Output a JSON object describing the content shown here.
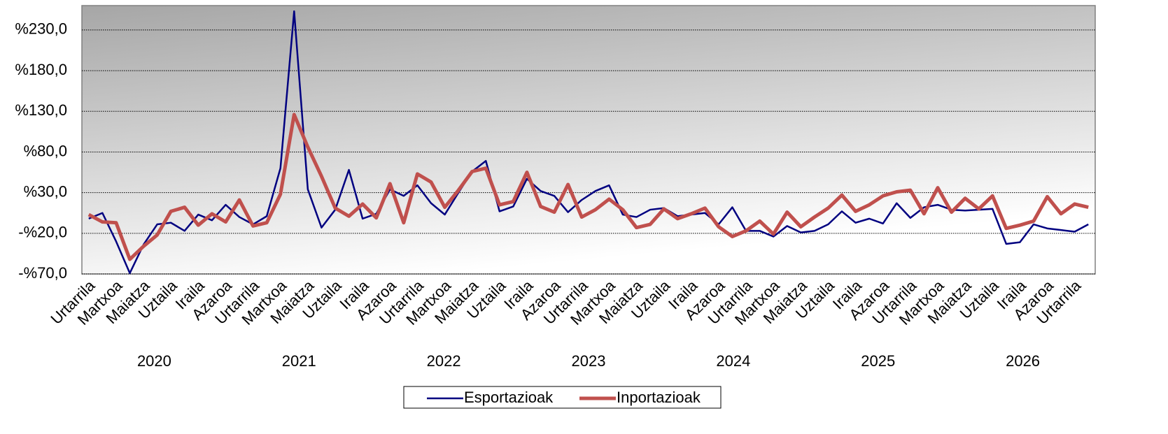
{
  "chart_data": {
    "type": "line",
    "categories": [
      "Urtarrila",
      null,
      "Martxoa",
      null,
      "Maiatza",
      null,
      "Uztaila",
      null,
      "Iraila",
      null,
      "Azaroa",
      null,
      "Urtarrila",
      null,
      "Martxoa",
      null,
      "Maiatza",
      null,
      "Uztaila",
      null,
      "Iraila",
      null,
      "Azaroa",
      null,
      "Urtarrila",
      null,
      "Martxoa",
      null,
      "Maiatza",
      null,
      "Uztaila",
      null,
      "Iraila",
      null,
      "Azaroa",
      null,
      "Urtarrila",
      null,
      "Martxoa",
      null,
      "Maiatza",
      null,
      "Uztaila",
      null,
      "Iraila",
      null,
      "Azaroa",
      null,
      "Urtarrila",
      null,
      "Martxoa",
      null,
      "Maiatza",
      null,
      "Uztaila",
      null,
      "Iraila",
      null,
      "Azaroa",
      null,
      "Urtarrila",
      null,
      "Martxoa",
      null,
      "Maiatza",
      null,
      "Uztaila",
      null,
      "Iraila",
      null,
      "Azaroa",
      null,
      "Urtarrila",
      null
    ],
    "groups": [
      "2020",
      "2021",
      "2022",
      "2023",
      "2024",
      "2025",
      "2026"
    ],
    "series": [
      {
        "name": "Esportazioak",
        "color": "#000080",
        "width": 2.5,
        "values": [
          -2,
          5,
          -30,
          -69,
          -34,
          -9,
          -7,
          -17,
          3,
          -4,
          15,
          0,
          -9,
          1,
          60,
          253,
          34,
          -13,
          9,
          58,
          -2,
          4,
          34,
          26,
          39,
          17,
          3,
          30,
          56,
          69,
          7,
          13,
          47,
          32,
          26,
          6,
          21,
          32,
          39,
          3,
          0,
          9,
          11,
          1,
          3,
          5,
          -9,
          12,
          -17,
          -17,
          -24,
          -11,
          -19,
          -17,
          -9,
          7,
          -7,
          -2,
          -8,
          17,
          -1,
          12,
          15,
          9,
          8,
          9,
          10,
          -33,
          -31,
          -9,
          -14,
          -16,
          -18,
          -9
        ]
      },
      {
        "name": "Inportazioak",
        "color": "#c0504d",
        "width": 5,
        "values": [
          3,
          -6,
          -7,
          -52,
          -36,
          -22,
          7,
          12,
          -10,
          4,
          -6,
          21,
          -11,
          -7,
          28,
          126,
          86,
          50,
          11,
          1,
          16,
          -1,
          41,
          -7,
          53,
          43,
          12,
          33,
          56,
          60,
          15,
          19,
          55,
          13,
          6,
          40,
          0,
          9,
          22,
          9,
          -13,
          -9,
          10,
          -2,
          4,
          11,
          -12,
          -24,
          -17,
          -5,
          -21,
          6,
          -12,
          0,
          11,
          27,
          7,
          15,
          26,
          31,
          33,
          4,
          36,
          6,
          23,
          10,
          26,
          -14,
          -10,
          -5,
          25,
          4,
          16,
          12
        ]
      }
    ],
    "ylim": [
      -70,
      260
    ],
    "yticks": [
      {
        "value": -70,
        "label": "-%70,0"
      },
      {
        "value": -20,
        "label": "-%20,0"
      },
      {
        "value": 30,
        "label": "%30,0"
      },
      {
        "value": 80,
        "label": "%80,0"
      },
      {
        "value": 130,
        "label": "%130,0"
      },
      {
        "value": 180,
        "label": "%180,0"
      },
      {
        "value": 230,
        "label": "%230,0"
      }
    ],
    "grid": true,
    "legend": "bottom"
  }
}
